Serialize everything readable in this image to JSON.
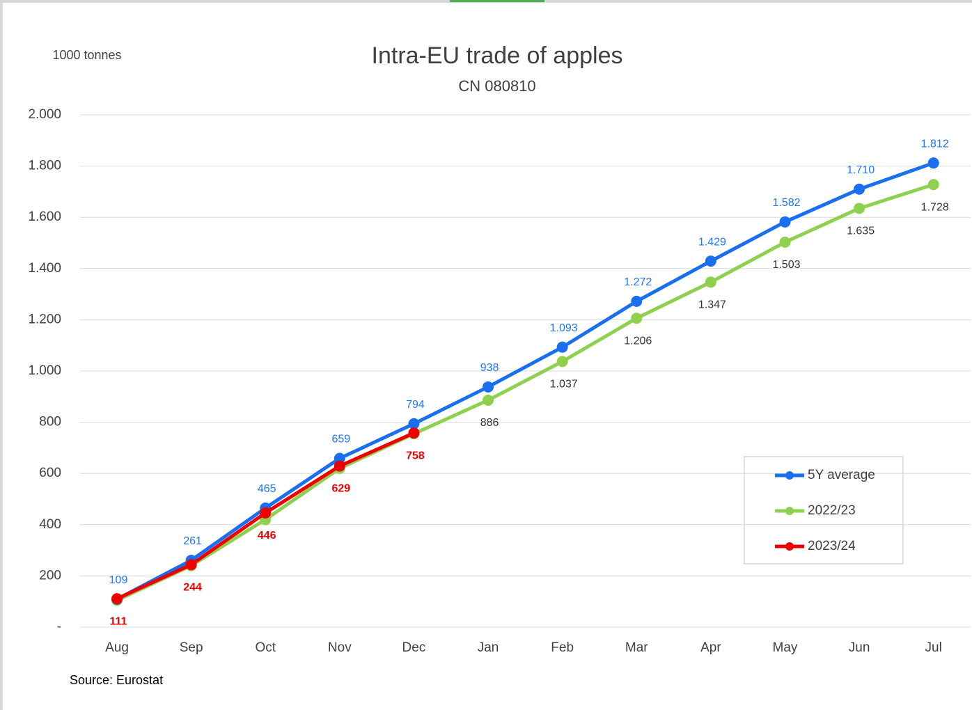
{
  "chart_data": {
    "type": "line",
    "title": "Intra-EU trade of apples",
    "subtitle": "CN 080810",
    "y_label": "1000 tonnes",
    "source": "Source: Eurostat",
    "categories": [
      "Aug",
      "Sep",
      "Oct",
      "Nov",
      "Dec",
      "Jan",
      "Feb",
      "Mar",
      "Apr",
      "May",
      "Jun",
      "Jul"
    ],
    "series": [
      {
        "name": "5Y average",
        "color": "#1a6ff0",
        "label_color": "#1a75ff",
        "label_weight": "normal",
        "label_side": "above",
        "values": [
          109,
          261,
          465,
          659,
          794,
          938,
          1093,
          1272,
          1429,
          1582,
          1710,
          1812
        ],
        "value_labels": [
          "109",
          "261",
          "465",
          "659",
          "794",
          "938",
          "1.093",
          "1.272",
          "1.429",
          "1.582",
          "1.710",
          "1.812"
        ]
      },
      {
        "name": "2022/23",
        "color": "#8fd14f",
        "label_color": "#333333",
        "label_weight": "normal",
        "label_side": "below",
        "values": [
          105,
          240,
          420,
          620,
          755,
          886,
          1037,
          1206,
          1347,
          1503,
          1635,
          1728
        ],
        "value_labels": [
          null,
          null,
          null,
          null,
          null,
          "886",
          "1.037",
          "1.206",
          "1.347",
          "1.503",
          "1.635",
          "1.728"
        ]
      },
      {
        "name": "2023/24",
        "color": "#ee0000",
        "label_color": "#ee0000",
        "label_weight": "bold",
        "label_side": "below",
        "values": [
          111,
          244,
          446,
          629,
          758,
          null,
          null,
          null,
          null,
          null,
          null,
          null
        ]
      }
    ],
    "ylim": [
      0,
      2000
    ],
    "yticks": [
      {
        "value": 0,
        "label": "-"
      },
      200,
      400,
      600,
      800,
      {
        "value": 1000,
        "label": "1.000"
      },
      {
        "value": 1200,
        "label": "1.200"
      },
      {
        "value": 1400,
        "label": "1.400"
      },
      {
        "value": 1600,
        "label": "1.600"
      },
      {
        "value": 1800,
        "label": "1.800"
      },
      {
        "value": 2000,
        "label": "2.000"
      }
    ],
    "grid": true
  }
}
